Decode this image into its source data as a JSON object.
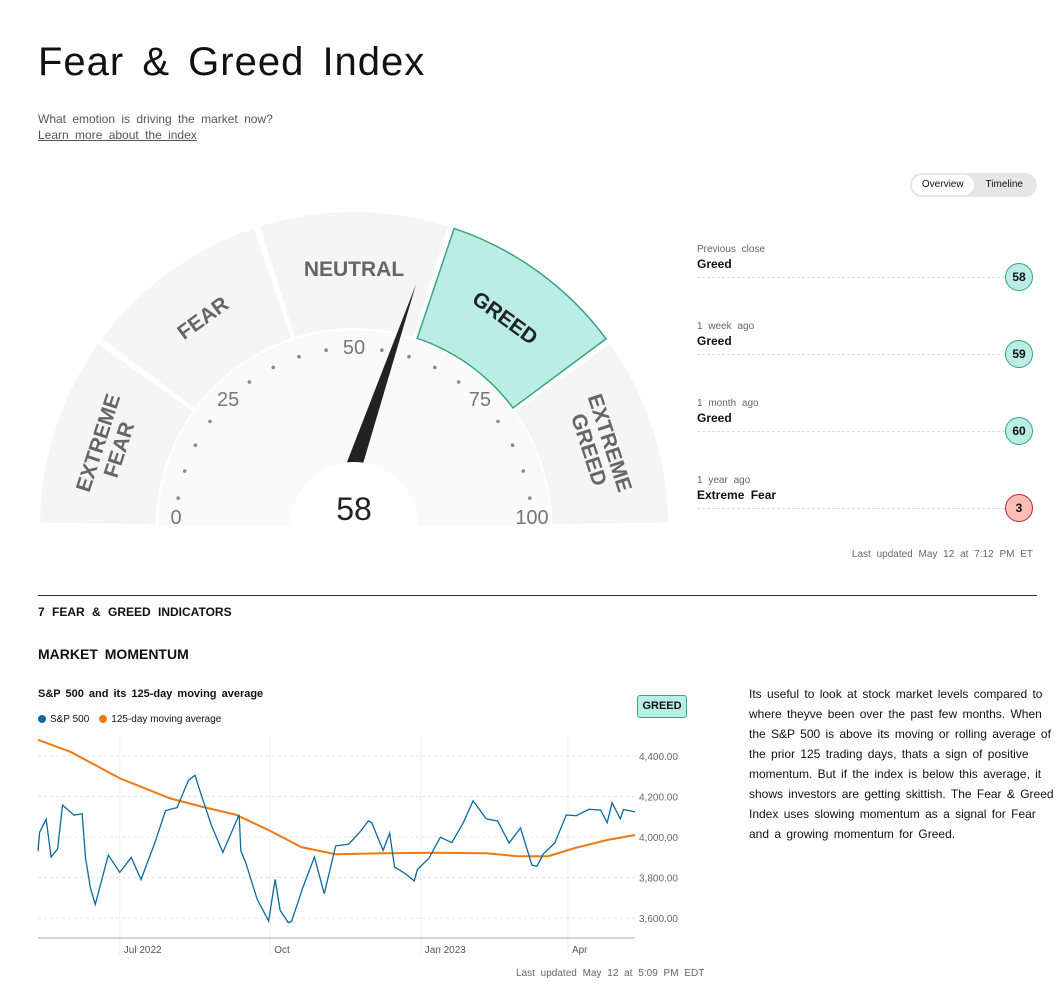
{
  "header": {
    "title": "Fear & Greed Index",
    "subtitle": "What emotion is driving the market now?",
    "learn_link": "Learn more about the index"
  },
  "toggle": {
    "overview": "Overview",
    "timeline": "Timeline"
  },
  "gauge": {
    "value": 58,
    "value_label": "58",
    "segments": [
      "EXTREME FEAR",
      "FEAR",
      "NEUTRAL",
      "GREED",
      "EXTREME GREED"
    ],
    "active_segment": 3,
    "ticks": [
      "0",
      "25",
      "50",
      "75",
      "100"
    ],
    "colors": {
      "segment": "#f5f5f5",
      "active": "#b9ede6",
      "active_border": "#3aa57a",
      "needle": "#222"
    }
  },
  "history": [
    {
      "when": "Previous close",
      "label": "Greed",
      "value": "58",
      "tone": "greed"
    },
    {
      "when": "1 week ago",
      "label": "Greed",
      "value": "59",
      "tone": "greed"
    },
    {
      "when": "1 month ago",
      "label": "Greed",
      "value": "60",
      "tone": "greed"
    },
    {
      "when": "1 year ago",
      "label": "Extreme Fear",
      "value": "3",
      "tone": "fear"
    }
  ],
  "last_updated": "Last updated May 12 at 7:12 PM ET",
  "indicators_title": "7 FEAR & GREED INDICATORS",
  "momentum": {
    "title": "MARKET MOMENTUM",
    "badge": "GREED",
    "description": "Its useful to look at stock market levels compared to where theyve been over the past few months. When the S&P 500 is above its moving or rolling average of the prior 125 trading days, thats a sign of positive momentum. But if the index is below this average, it shows investors are getting skittish. The Fear & Greed Index uses slowing momentum as a signal for Fear and a growing momentum for Greed.",
    "last_updated": "Last updated May 12 at 5:09 PM EDT"
  },
  "chart_data": {
    "type": "line",
    "title": "S&P 500 and its 125-day moving average",
    "x_range": [
      "2022-05-12",
      "2023-05-12"
    ],
    "ylim": [
      3500,
      4490
    ],
    "y_ticks": [
      3600,
      3800,
      4000,
      4200,
      4400
    ],
    "y_tick_labels": [
      "3,600.00",
      "3,800.00",
      "4,000.00",
      "4,200.00",
      "4,400.00"
    ],
    "x_ticks": [
      {
        "date": "2022-07-01",
        "label": "Jul 2022"
      },
      {
        "date": "2022-10-01",
        "label": "Oct"
      },
      {
        "date": "2023-01-01",
        "label": "Jan 2023"
      },
      {
        "date": "2023-04-01",
        "label": "Apr"
      }
    ],
    "series": [
      {
        "name": "S&P 500",
        "color": "#0a6aa1",
        "points": [
          [
            "2022-05-12",
            3930
          ],
          [
            "2022-05-13",
            4023
          ],
          [
            "2022-05-17",
            4088
          ],
          [
            "2022-05-20",
            3901
          ],
          [
            "2022-05-24",
            3941
          ],
          [
            "2022-05-27",
            4158
          ],
          [
            "2022-06-03",
            4108
          ],
          [
            "2022-06-08",
            4115
          ],
          [
            "2022-06-10",
            3901
          ],
          [
            "2022-06-13",
            3750
          ],
          [
            "2022-06-16",
            3667
          ],
          [
            "2022-06-24",
            3911
          ],
          [
            "2022-07-01",
            3825
          ],
          [
            "2022-07-08",
            3899
          ],
          [
            "2022-07-14",
            3790
          ],
          [
            "2022-07-22",
            3962
          ],
          [
            "2022-07-29",
            4130
          ],
          [
            "2022-08-05",
            4145
          ],
          [
            "2022-08-12",
            4280
          ],
          [
            "2022-08-16",
            4305
          ],
          [
            "2022-08-19",
            4228
          ],
          [
            "2022-08-26",
            4058
          ],
          [
            "2022-09-02",
            3924
          ],
          [
            "2022-09-12",
            4110
          ],
          [
            "2022-09-13",
            3932
          ],
          [
            "2022-09-16",
            3873
          ],
          [
            "2022-09-23",
            3693
          ],
          [
            "2022-09-30",
            3585
          ],
          [
            "2022-10-04",
            3791
          ],
          [
            "2022-10-07",
            3639
          ],
          [
            "2022-10-12",
            3577
          ],
          [
            "2022-10-14",
            3583
          ],
          [
            "2022-10-21",
            3752
          ],
          [
            "2022-10-28",
            3901
          ],
          [
            "2022-11-03",
            3720
          ],
          [
            "2022-11-10",
            3956
          ],
          [
            "2022-11-18",
            3965
          ],
          [
            "2022-11-25",
            4026
          ],
          [
            "2022-11-30",
            4080
          ],
          [
            "2022-12-02",
            4071
          ],
          [
            "2022-12-09",
            3934
          ],
          [
            "2022-12-13",
            4019
          ],
          [
            "2022-12-16",
            3852
          ],
          [
            "2022-12-22",
            3822
          ],
          [
            "2022-12-28",
            3783
          ],
          [
            "2022-12-30",
            3840
          ],
          [
            "2023-01-06",
            3895
          ],
          [
            "2023-01-13",
            3999
          ],
          [
            "2023-01-20",
            3972
          ],
          [
            "2023-01-27",
            4070
          ],
          [
            "2023-02-02",
            4179
          ],
          [
            "2023-02-10",
            4090
          ],
          [
            "2023-02-17",
            4079
          ],
          [
            "2023-02-24",
            3970
          ],
          [
            "2023-03-03",
            4045
          ],
          [
            "2023-03-10",
            3861
          ],
          [
            "2023-03-13",
            3855
          ],
          [
            "2023-03-17",
            3917
          ],
          [
            "2023-03-24",
            3971
          ],
          [
            "2023-03-31",
            4109
          ],
          [
            "2023-04-06",
            4105
          ],
          [
            "2023-04-14",
            4137
          ],
          [
            "2023-04-21",
            4133
          ],
          [
            "2023-04-25",
            4071
          ],
          [
            "2023-04-28",
            4169
          ],
          [
            "2023-05-03",
            4090
          ],
          [
            "2023-05-05",
            4136
          ],
          [
            "2023-05-12",
            4124
          ]
        ]
      },
      {
        "name": "125-day moving average",
        "color": "#f07a12",
        "points": [
          [
            "2022-05-12",
            4480
          ],
          [
            "2022-06-01",
            4420
          ],
          [
            "2022-07-01",
            4290
          ],
          [
            "2022-08-01",
            4190
          ],
          [
            "2022-08-20",
            4150
          ],
          [
            "2022-09-10",
            4110
          ],
          [
            "2022-10-01",
            4030
          ],
          [
            "2022-10-20",
            3950
          ],
          [
            "2022-11-10",
            3915
          ],
          [
            "2022-12-10",
            3920
          ],
          [
            "2023-01-10",
            3922
          ],
          [
            "2023-02-10",
            3920
          ],
          [
            "2023-03-01",
            3905
          ],
          [
            "2023-03-20",
            3905
          ],
          [
            "2023-04-05",
            3945
          ],
          [
            "2023-04-25",
            3985
          ],
          [
            "2023-05-12",
            4010
          ]
        ]
      }
    ]
  }
}
